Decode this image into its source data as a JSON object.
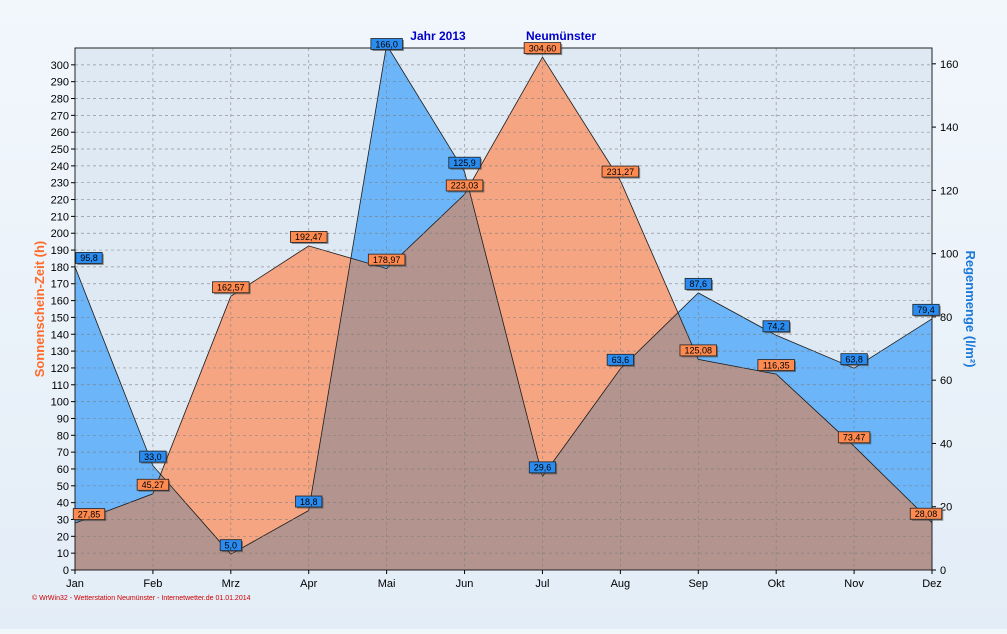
{
  "footer": "© WrWin32 - Wetterstation Neumünster - Internetwetter.de  01.01.2014",
  "chart_data": {
    "type": "area",
    "title": "Jahr  2013",
    "subtitle": "Neumünster",
    "categories": [
      "Jan",
      "Feb",
      "Mrz",
      "Apr",
      "Mai",
      "Jun",
      "Jul",
      "Aug",
      "Sep",
      "Okt",
      "Nov",
      "Dez"
    ],
    "ylabel_left": "Sonnenschein-Zeit  (h)",
    "ylabel_right": "Regenmenge  (l/m²)",
    "ylim_left": [
      0,
      310
    ],
    "ylim_right": [
      0,
      165
    ],
    "yticks_left": [
      0,
      10,
      20,
      30,
      40,
      50,
      60,
      70,
      80,
      90,
      100,
      110,
      120,
      130,
      140,
      150,
      160,
      170,
      180,
      190,
      200,
      210,
      220,
      230,
      240,
      250,
      260,
      270,
      280,
      290,
      300
    ],
    "yticks_right": [
      0,
      20,
      40,
      60,
      80,
      100,
      120,
      140,
      160
    ],
    "grid": true,
    "series": [
      {
        "name": "Sonnenschein-Zeit",
        "axis": "left",
        "color": "#f5a582",
        "labelColor": "#ff8a50",
        "values": [
          27.85,
          45.27,
          162.57,
          192.47,
          178.97,
          223.03,
          304.6,
          231.27,
          125.08,
          116.35,
          73.47,
          28.08
        ],
        "labels": [
          "27,85",
          "45,27",
          "162,57",
          "192,47",
          "178,97",
          "223,03",
          "304,60",
          "231,27",
          "125,08",
          "116,35",
          "73,47",
          "28,08"
        ]
      },
      {
        "name": "Regenmenge",
        "axis": "right",
        "color": "#6cb5f8",
        "labelColor": "#2a8cf0",
        "values": [
          95.8,
          33.0,
          5.0,
          18.8,
          166.0,
          125.9,
          29.6,
          63.6,
          87.6,
          74.2,
          63.8,
          79.4
        ],
        "labels": [
          "95,8",
          "33,0",
          "5,0",
          "18,8",
          "166,0",
          "125,9",
          "29,6",
          "63,6",
          "87,6",
          "74,2",
          "63,8",
          "79,4"
        ]
      }
    ],
    "overlapColor": "#b3948f"
  }
}
